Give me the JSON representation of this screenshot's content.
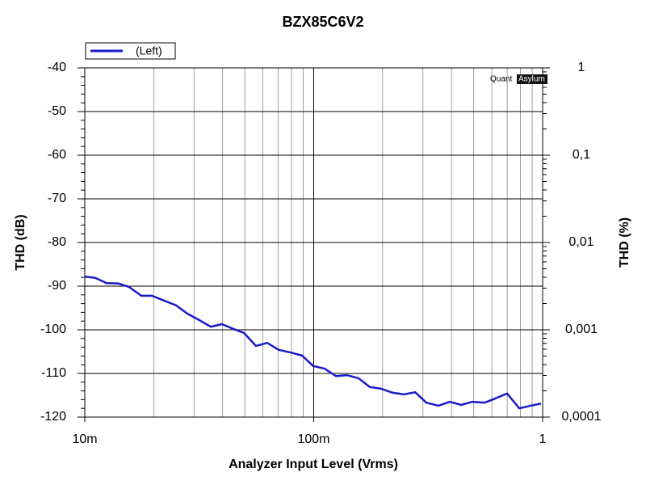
{
  "chart_data": {
    "type": "line",
    "title": "BZX85C6V2",
    "x_label": "Analyzer Input Level (Vrms)",
    "y_label": "THD (dB)",
    "y2_label": "THD (%)",
    "watermark": {
      "plain": "Quant",
      "boxed": "Asylum"
    },
    "x_log": true,
    "y2_log": true,
    "grid": true,
    "legend_position": "top-left",
    "xlim": [
      0.01,
      1
    ],
    "xticks": [
      {
        "value": 0.01,
        "label": "10m"
      },
      {
        "value": 0.1,
        "label": "100m"
      },
      1
    ],
    "ylim": [
      -120,
      -40
    ],
    "yticks": [
      -120,
      -110,
      -100,
      -90,
      -80,
      -70,
      -60,
      -50,
      -40
    ],
    "y2lim": [
      0.0001,
      1
    ],
    "y2ticks": [
      {
        "value": 0.0001,
        "label": "0,0001"
      },
      {
        "value": 0.001,
        "label": "0,001"
      },
      {
        "value": 0.01,
        "label": "0,01"
      },
      {
        "value": 0.1,
        "label": "0,1"
      },
      1
    ],
    "x": [
      0.01,
      0.01111,
      0.01245,
      0.01407,
      0.01563,
      0.01766,
      0.01963,
      0.02218,
      0.02506,
      0.02805,
      0.03169,
      0.03548,
      0.03981,
      0.04457,
      0.04955,
      0.05598,
      0.06266,
      0.07031,
      0.07925,
      0.08892,
      0.0995,
      0.1117,
      0.125,
      0.14,
      0.157,
      0.1758,
      0.1972,
      0.2208,
      0.2472,
      0.2773,
      0.3105,
      0.3508,
      0.3926,
      0.4406,
      0.4932,
      0.5572,
      0.6237,
      0.6998,
      0.7907,
      0.8851,
      0.984
    ],
    "series": [
      {
        "name": "(Left)",
        "color": "#1a1ac8",
        "values": [
          -87.8,
          -88.1,
          -89.3,
          -89.4,
          -90.2,
          -92.2,
          -92.2,
          -93.3,
          -94.4,
          -96.3,
          -97.8,
          -99.3,
          -98.7,
          -99.8,
          -100.7,
          -103.7,
          -103.0,
          -104.6,
          -105.2,
          -105.9,
          -108.3,
          -108.9,
          -110.6,
          -110.4,
          -111.1,
          -113.1,
          -113.5,
          -114.4,
          -114.8,
          -114.3,
          -116.7,
          -117.4,
          -116.5,
          -117.2,
          -116.5,
          -116.7,
          -115.7,
          -114.6,
          -118.0,
          -117.4,
          -116.9
        ]
      }
    ]
  }
}
